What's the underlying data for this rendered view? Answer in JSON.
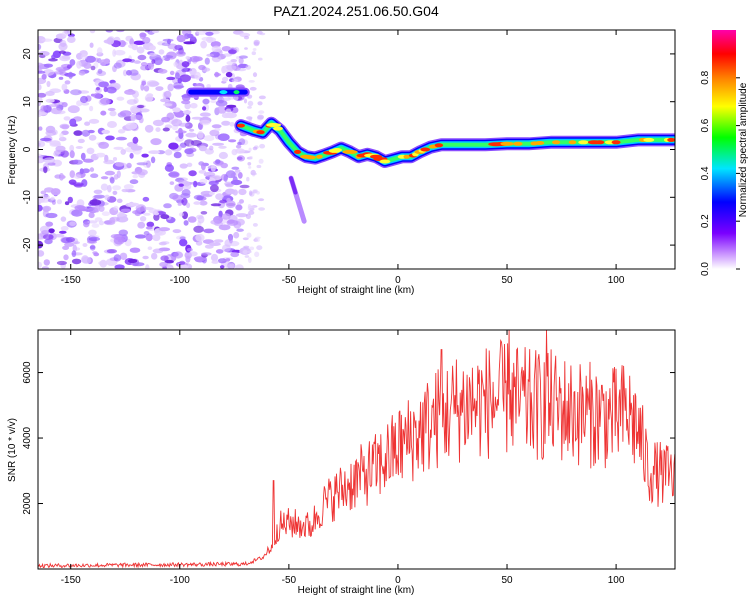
{
  "figure": {
    "title": "PAZ1.2024.251.06.50.G04"
  },
  "chart_data": [
    {
      "type": "heatmap",
      "title": "PAZ1.2024.251.06.50.G04",
      "xlabel": "Height of straight line (km)",
      "ylabel": "Frequency (Hz)",
      "xlim": [
        -165,
        127
      ],
      "ylim": [
        -25,
        25
      ],
      "xticks": [
        -150,
        -100,
        -50,
        0,
        50,
        100
      ],
      "yticks": [
        -20,
        -10,
        0,
        10,
        20
      ],
      "colorbar": {
        "label": "Normalized spectral amplitude",
        "range": [
          0,
          1
        ],
        "ticks": [
          "0.0",
          "0.2",
          "0.4",
          "0.6",
          "0.8"
        ],
        "colormap": "rainbow"
      },
      "ridge": {
        "x": [
          -72,
          -66,
          -62,
          -58,
          -54,
          -50,
          -46,
          -42,
          -38,
          -34,
          -30,
          -26,
          -22,
          -18,
          -14,
          -10,
          -6,
          -2,
          2,
          6,
          10,
          15,
          20,
          30,
          40,
          50,
          60,
          70,
          80,
          90,
          100,
          110,
          120,
          127
        ],
        "y": [
          5,
          4,
          3.5,
          5.5,
          4,
          1.5,
          -0.5,
          -1.5,
          -1.8,
          -1.2,
          -0.5,
          0.3,
          -0.5,
          -1.5,
          -1,
          -1.5,
          -2.5,
          -2,
          -1.5,
          -1.5,
          -0.5,
          0.5,
          1,
          1,
          1,
          1.2,
          1.2,
          1.5,
          1.5,
          1.5,
          1.5,
          2,
          2,
          2
        ]
      },
      "features": {
        "line_12hz": {
          "x": [
            -95,
            -70
          ],
          "y": 12
        },
        "tail": {
          "x": [
            -49,
            -43
          ],
          "y": [
            -6,
            -15
          ]
        }
      }
    },
    {
      "type": "line",
      "xlabel": "Height of straight line (km)",
      "ylabel": "SNR (10 * v/v)",
      "xlim": [
        -165,
        127
      ],
      "ylim": [
        0,
        7300
      ],
      "xticks": [
        -150,
        -100,
        -50,
        0,
        50,
        100
      ],
      "yticks": [
        2000,
        4000,
        6000
      ],
      "color": "#ee3333",
      "envelope": {
        "x": [
          -165,
          -70,
          -62,
          -58,
          -55,
          -50,
          -40,
          -35,
          -30,
          -20,
          -10,
          0,
          10,
          20,
          30,
          40,
          50,
          60,
          70,
          80,
          90,
          100,
          105,
          110,
          115,
          120,
          127
        ],
        "y": [
          100,
          150,
          350,
          700,
          1300,
          1400,
          1300,
          1900,
          2200,
          2700,
          3100,
          3700,
          4200,
          4700,
          5000,
          5100,
          5200,
          5000,
          5000,
          4800,
          4700,
          4600,
          4800,
          4300,
          3000,
          2900,
          2800
        ]
      },
      "peaks": [
        {
          "x": -57,
          "y": 2700
        },
        {
          "x": 20,
          "y": 6700
        },
        {
          "x": 51,
          "y": 7300
        },
        {
          "x": 68,
          "y": 7300
        }
      ]
    }
  ]
}
